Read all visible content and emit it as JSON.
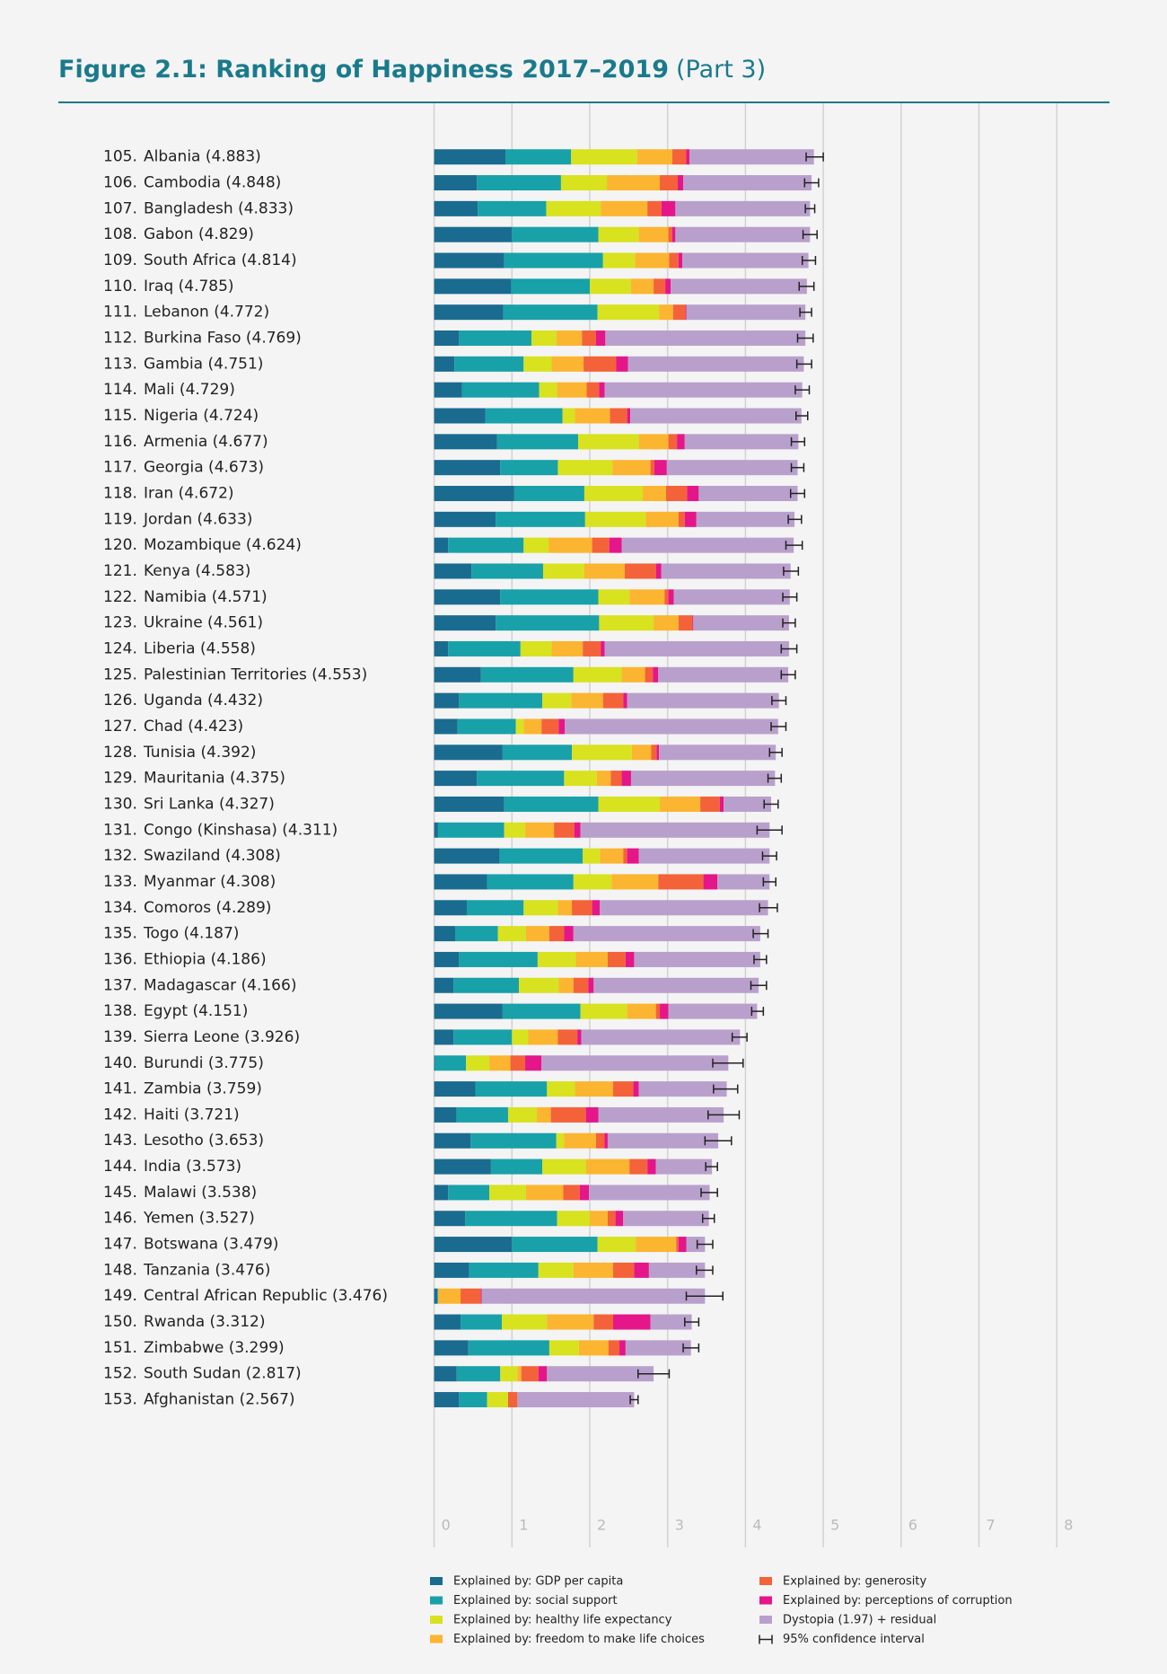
{
  "chart_data": {
    "type": "bar",
    "orientation": "horizontal",
    "stacked": true,
    "title": "Figure 2.1: Ranking of Happiness 2017–2019",
    "subtitle": "(Part 3)",
    "ranks": [
      "105.",
      "106.",
      "107.",
      "108.",
      "109.",
      "110.",
      "111.",
      "112.",
      "113.",
      "114.",
      "115.",
      "116.",
      "117.",
      "118.",
      "119.",
      "120.",
      "121.",
      "122.",
      "123.",
      "124.",
      "125.",
      "126.",
      "127.",
      "128.",
      "129.",
      "130.",
      "131.",
      "132.",
      "133.",
      "134.",
      "135.",
      "136.",
      "137.",
      "138.",
      "139.",
      "140.",
      "141.",
      "142.",
      "143.",
      "144.",
      "145.",
      "146.",
      "147.",
      "148.",
      "149.",
      "150.",
      "151.",
      "152.",
      "153."
    ],
    "categories": [
      "Albania (4.883)",
      "Cambodia (4.848)",
      "Bangladesh (4.833)",
      "Gabon (4.829)",
      "South Africa (4.814)",
      "Iraq (4.785)",
      "Lebanon (4.772)",
      "Burkina Faso (4.769)",
      "Gambia (4.751)",
      "Mali (4.729)",
      "Nigeria (4.724)",
      "Armenia (4.677)",
      "Georgia (4.673)",
      "Iran (4.672)",
      "Jordan (4.633)",
      "Mozambique (4.624)",
      "Kenya (4.583)",
      "Namibia (4.571)",
      "Ukraine (4.561)",
      "Liberia (4.558)",
      "Palestinian Territories (4.553)",
      "Uganda (4.432)",
      "Chad (4.423)",
      "Tunisia (4.392)",
      "Mauritania (4.375)",
      "Sri Lanka (4.327)",
      "Congo (Kinshasa) (4.311)",
      "Swaziland (4.308)",
      "Myanmar (4.308)",
      "Comoros (4.289)",
      "Togo (4.187)",
      "Ethiopia (4.186)",
      "Madagascar (4.166)",
      "Egypt (4.151)",
      "Sierra Leone (3.926)",
      "Burundi (3.775)",
      "Zambia (3.759)",
      "Haiti (3.721)",
      "Lesotho (3.653)",
      "India (3.573)",
      "Malawi (3.538)",
      "Yemen (3.527)",
      "Botswana (3.479)",
      "Tanzania (3.476)",
      "Central African Republic (3.476)",
      "Rwanda (3.312)",
      "Zimbabwe (3.299)",
      "South Sudan (2.817)",
      "Afghanistan (2.567)"
    ],
    "series": [
      {
        "name": "Explained by: GDP per capita",
        "color": "#1a6b90",
        "values": [
          0.92,
          0.55,
          0.56,
          1.0,
          0.9,
          0.99,
          0.89,
          0.32,
          0.26,
          0.36,
          0.66,
          0.81,
          0.85,
          1.03,
          0.79,
          0.18,
          0.48,
          0.85,
          0.79,
          0.18,
          0.6,
          0.32,
          0.3,
          0.88,
          0.55,
          0.9,
          0.05,
          0.84,
          0.68,
          0.42,
          0.27,
          0.32,
          0.25,
          0.88,
          0.25,
          0.01,
          0.53,
          0.29,
          0.47,
          0.73,
          0.18,
          0.4,
          1.0,
          0.45,
          0.04,
          0.34,
          0.44,
          0.29,
          0.32
        ]
      },
      {
        "name": "Explained by: social support",
        "color": "#18a1a9",
        "values": [
          0.84,
          1.08,
          0.88,
          1.11,
          1.27,
          1.01,
          1.21,
          0.93,
          0.89,
          0.99,
          0.99,
          1.04,
          0.74,
          0.9,
          1.15,
          0.97,
          0.92,
          1.26,
          1.33,
          0.93,
          1.19,
          1.07,
          0.75,
          0.89,
          1.12,
          1.21,
          0.85,
          1.07,
          1.11,
          0.73,
          0.55,
          1.01,
          0.84,
          1.0,
          0.75,
          0.4,
          0.92,
          0.66,
          1.1,
          0.66,
          0.53,
          1.18,
          1.1,
          0.89,
          0.01,
          0.53,
          1.04,
          0.56,
          0.36
        ]
      },
      {
        "name": "Explained by: healthy life expectancy",
        "color": "#d8e21f",
        "values": [
          0.85,
          0.59,
          0.7,
          0.52,
          0.41,
          0.53,
          0.79,
          0.32,
          0.36,
          0.23,
          0.16,
          0.78,
          0.7,
          0.75,
          0.78,
          0.32,
          0.53,
          0.4,
          0.7,
          0.4,
          0.62,
          0.37,
          0.1,
          0.77,
          0.42,
          0.79,
          0.27,
          0.22,
          0.49,
          0.44,
          0.36,
          0.49,
          0.51,
          0.6,
          0.21,
          0.3,
          0.36,
          0.37,
          0.1,
          0.56,
          0.47,
          0.42,
          0.49,
          0.45,
          0.0,
          0.58,
          0.38,
          0.22,
          0.27
        ]
      },
      {
        "name": "Explained by: freedom to make life choices",
        "color": "#fbb530",
        "values": [
          0.45,
          0.68,
          0.6,
          0.38,
          0.44,
          0.29,
          0.18,
          0.33,
          0.41,
          0.38,
          0.45,
          0.38,
          0.49,
          0.3,
          0.42,
          0.56,
          0.52,
          0.45,
          0.32,
          0.4,
          0.3,
          0.41,
          0.23,
          0.25,
          0.18,
          0.52,
          0.37,
          0.3,
          0.6,
          0.18,
          0.3,
          0.41,
          0.19,
          0.37,
          0.38,
          0.27,
          0.49,
          0.18,
          0.41,
          0.56,
          0.48,
          0.23,
          0.52,
          0.51,
          0.29,
          0.6,
          0.38,
          0.05,
          0.0
        ]
      },
      {
        "name": "Explained by: generosity",
        "color": "#f4623a",
        "values": [
          0.18,
          0.23,
          0.18,
          0.05,
          0.12,
          0.15,
          0.16,
          0.18,
          0.42,
          0.16,
          0.22,
          0.11,
          0.05,
          0.27,
          0.08,
          0.22,
          0.4,
          0.05,
          0.18,
          0.23,
          0.1,
          0.26,
          0.22,
          0.07,
          0.14,
          0.25,
          0.26,
          0.05,
          0.58,
          0.26,
          0.19,
          0.23,
          0.19,
          0.05,
          0.25,
          0.19,
          0.26,
          0.45,
          0.11,
          0.23,
          0.21,
          0.1,
          0.03,
          0.27,
          0.26,
          0.25,
          0.14,
          0.22,
          0.12
        ]
      },
      {
        "name": "Explained by: perceptions of corruption",
        "color": "#e4168a",
        "values": [
          0.04,
          0.07,
          0.18,
          0.04,
          0.05,
          0.07,
          0.01,
          0.12,
          0.15,
          0.07,
          0.04,
          0.1,
          0.16,
          0.15,
          0.15,
          0.16,
          0.07,
          0.07,
          0.01,
          0.05,
          0.07,
          0.05,
          0.08,
          0.03,
          0.12,
          0.05,
          0.08,
          0.15,
          0.18,
          0.1,
          0.12,
          0.11,
          0.07,
          0.11,
          0.05,
          0.21,
          0.07,
          0.16,
          0.04,
          0.11,
          0.12,
          0.1,
          0.1,
          0.19,
          0.01,
          0.48,
          0.08,
          0.11,
          0.0
        ]
      },
      {
        "name": "Dystopia (1.97) + residual",
        "color": "#b9a0cc",
        "values": [
          1.6,
          1.65,
          1.73,
          1.73,
          1.62,
          1.75,
          1.53,
          2.57,
          2.26,
          2.54,
          2.2,
          1.46,
          1.68,
          1.27,
          1.26,
          2.21,
          1.66,
          1.49,
          1.23,
          2.37,
          1.67,
          1.95,
          2.74,
          1.5,
          1.85,
          0.61,
          2.43,
          1.68,
          0.67,
          2.16,
          2.4,
          1.62,
          2.12,
          1.14,
          2.04,
          2.4,
          1.13,
          1.61,
          1.42,
          0.72,
          1.55,
          1.1,
          0.24,
          0.72,
          2.87,
          0.53,
          0.84,
          1.37,
          1.5
        ]
      }
    ],
    "ci": {
      "name": "95% confidence interval",
      "color": "#222222",
      "low": [
        4.78,
        4.76,
        4.77,
        4.74,
        4.73,
        4.69,
        4.7,
        4.67,
        4.66,
        4.64,
        4.65,
        4.59,
        4.59,
        4.58,
        4.55,
        4.52,
        4.49,
        4.48,
        4.48,
        4.46,
        4.46,
        4.34,
        4.33,
        4.31,
        4.29,
        4.24,
        4.15,
        4.22,
        4.23,
        4.18,
        4.1,
        4.11,
        4.07,
        4.08,
        3.83,
        3.58,
        3.59,
        3.52,
        3.48,
        3.49,
        3.43,
        3.45,
        3.38,
        3.37,
        3.24,
        3.22,
        3.2,
        2.62,
        2.52
      ],
      "high": [
        5.0,
        4.94,
        4.89,
        4.92,
        4.9,
        4.88,
        4.85,
        4.87,
        4.85,
        4.82,
        4.8,
        4.76,
        4.75,
        4.76,
        4.72,
        4.73,
        4.68,
        4.66,
        4.64,
        4.66,
        4.64,
        4.52,
        4.52,
        4.47,
        4.46,
        4.42,
        4.47,
        4.4,
        4.39,
        4.41,
        4.29,
        4.27,
        4.27,
        4.23,
        4.02,
        3.97,
        3.9,
        3.92,
        3.82,
        3.64,
        3.64,
        3.6,
        3.58,
        3.58,
        3.71,
        3.4,
        3.4,
        3.02,
        2.62
      ]
    },
    "xlim": [
      0,
      8
    ],
    "xticks": [
      0,
      1,
      2,
      3,
      4,
      5,
      6,
      7,
      8
    ],
    "grid": true
  }
}
